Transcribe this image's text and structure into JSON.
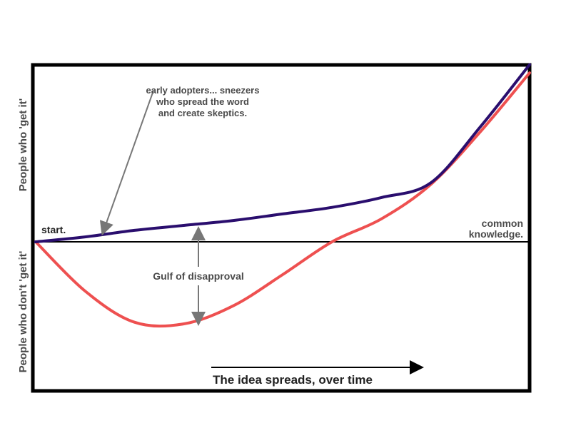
{
  "chart_data": {
    "type": "line",
    "ylabel_top": "People who 'get it'",
    "ylabel_bottom": "People who don't 'get it'",
    "xlabel": "The idea spreads, over time",
    "x": [
      0,
      0.1,
      0.2,
      0.3,
      0.4,
      0.5,
      0.6,
      0.7,
      0.8,
      0.9,
      1.0
    ],
    "series": [
      {
        "key": "adopters",
        "values": [
          0,
          0.03,
          0.07,
          0.1,
          0.13,
          0.17,
          0.21,
          0.27,
          0.36,
          0.7,
          1.08
        ]
      },
      {
        "key": "skeptics",
        "values": [
          0,
          -0.3,
          -0.49,
          -0.5,
          -0.39,
          -0.2,
          0,
          0.14,
          0.35,
          0.67,
          1.03
        ]
      }
    ],
    "colors": {
      "adopters": "#2a0e6e",
      "skeptics": "#ee5050"
    },
    "annotations": {
      "start": "start.",
      "adopters_line1": "early adopters... sneezers",
      "adopters_line2": "who spread the word",
      "adopters_line3": "and create skeptics.",
      "gulf": "Gulf of disapproval",
      "common1": "common",
      "common2": "knowledge."
    },
    "grid": false,
    "legend": "none"
  }
}
